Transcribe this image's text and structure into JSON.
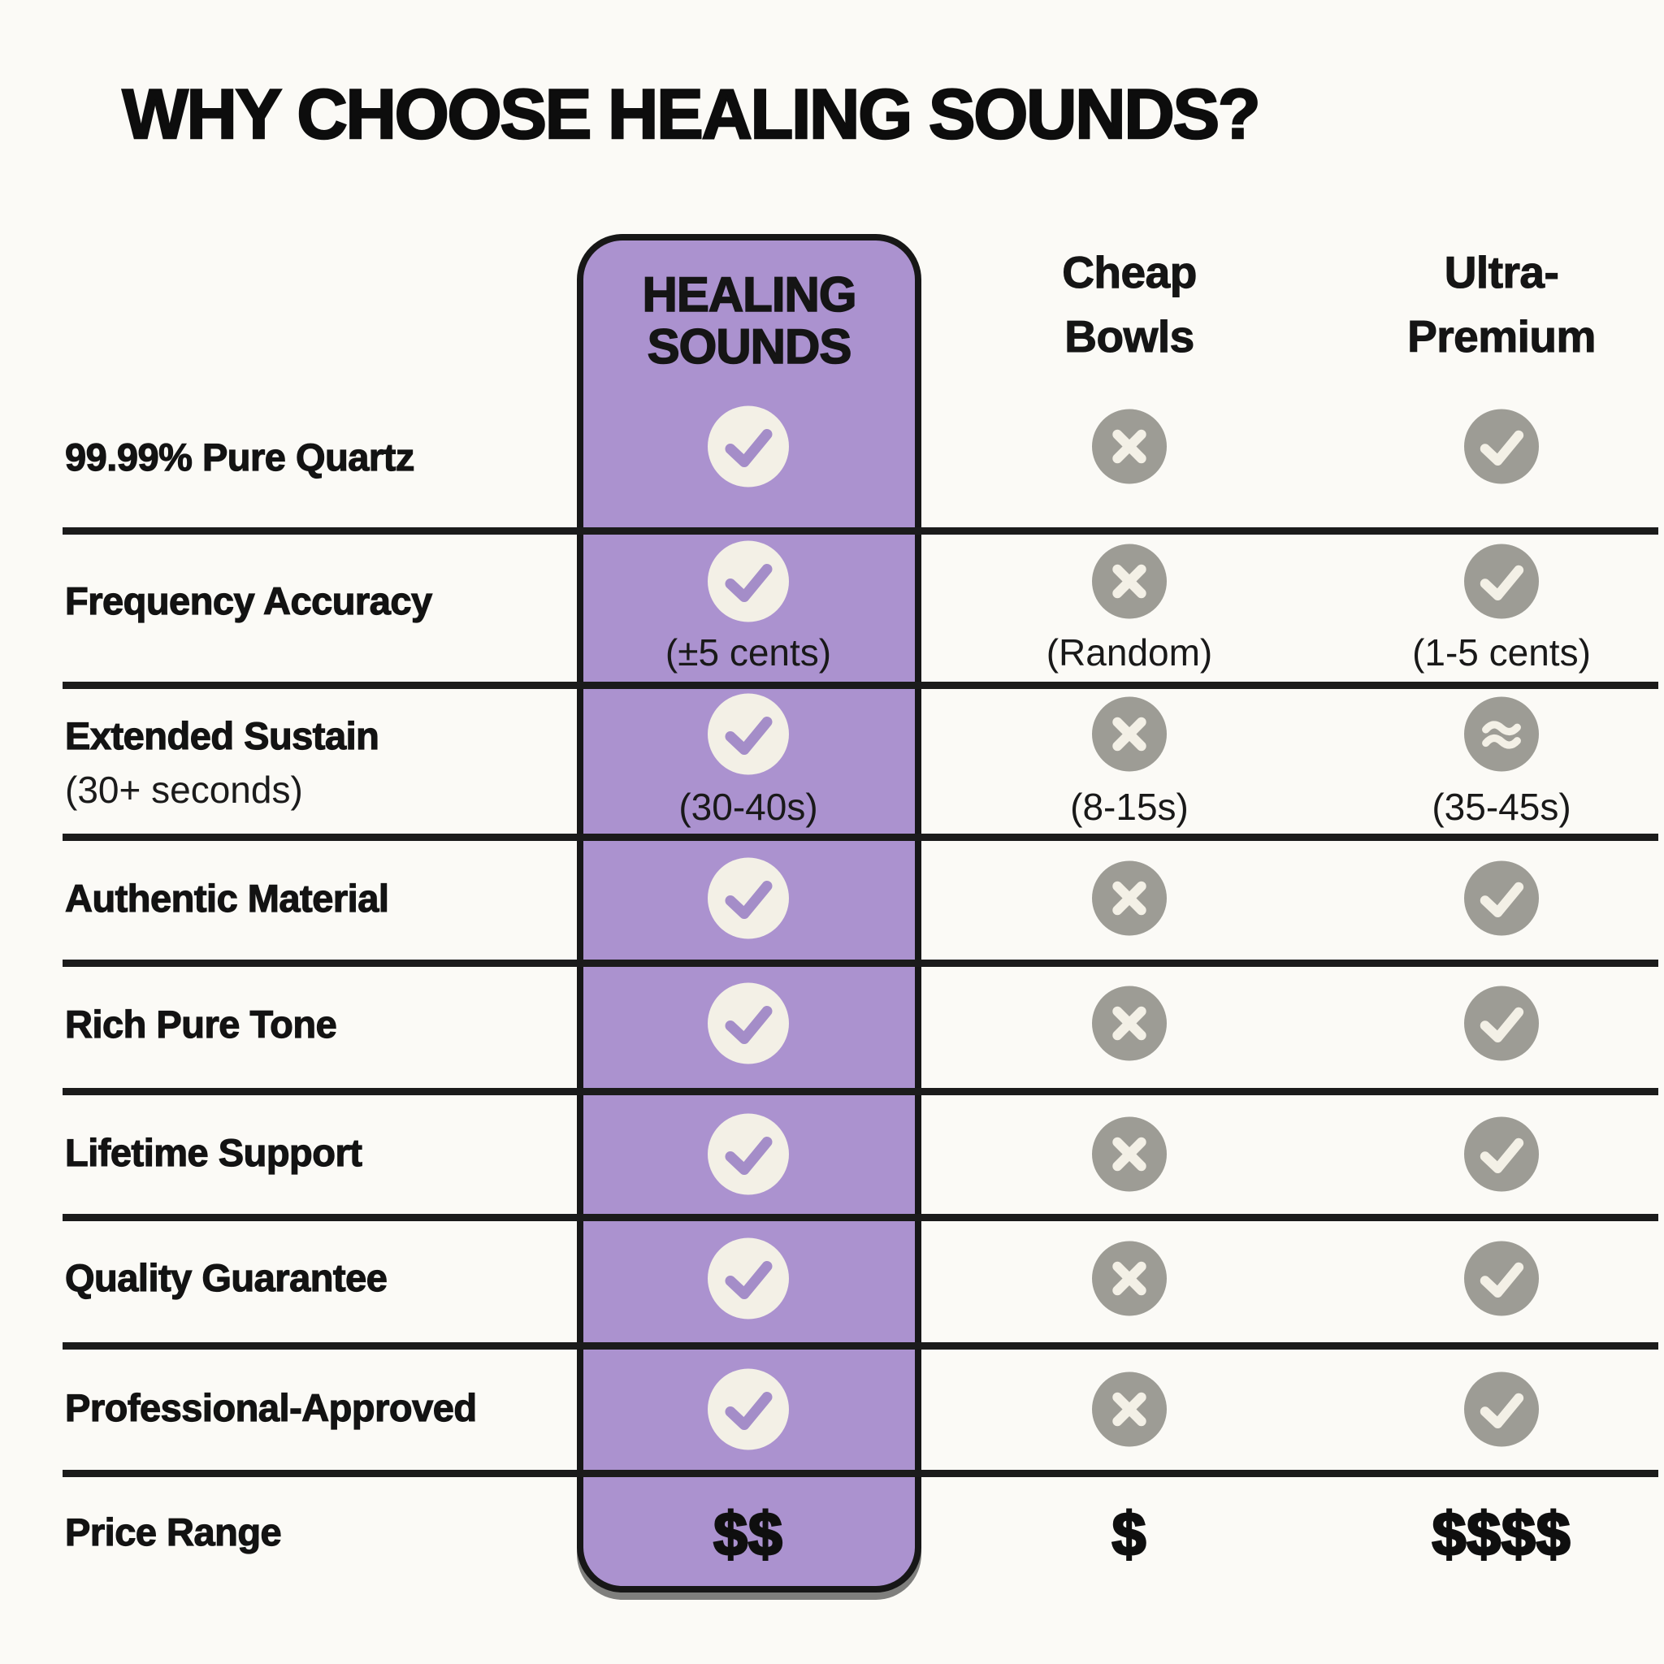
{
  "title": "WHY CHOOSE HEALING SOUNDS?",
  "columns": [
    {
      "id": "healing-sounds",
      "line1": "HEALING",
      "line2": "SOUNDS",
      "highlighted": true
    },
    {
      "id": "cheap-bowls",
      "line1": "Cheap",
      "line2": "Bowls",
      "highlighted": false
    },
    {
      "id": "ultra-premium",
      "line1": "Ultra-",
      "line2": "Premium",
      "highlighted": false
    }
  ],
  "rows": [
    {
      "label": "99.99% Pure Quartz",
      "cells": [
        {
          "icon": "check"
        },
        {
          "icon": "cross"
        },
        {
          "icon": "check"
        }
      ]
    },
    {
      "label": "Frequency Accuracy",
      "cells": [
        {
          "icon": "check",
          "sub": "(±5 cents)"
        },
        {
          "icon": "cross",
          "sub": "(Random)"
        },
        {
          "icon": "check",
          "sub": "(1-5 cents)"
        }
      ]
    },
    {
      "label": "Extended Sustain",
      "sublabel": "(30+ seconds)",
      "cells": [
        {
          "icon": "check",
          "sub": "(30-40s)"
        },
        {
          "icon": "cross",
          "sub": "(8-15s)"
        },
        {
          "icon": "approx",
          "sub": "(35-45s)"
        }
      ]
    },
    {
      "label": "Authentic Material",
      "cells": [
        {
          "icon": "check"
        },
        {
          "icon": "cross"
        },
        {
          "icon": "check"
        }
      ]
    },
    {
      "label": "Rich Pure Tone",
      "cells": [
        {
          "icon": "check"
        },
        {
          "icon": "cross"
        },
        {
          "icon": "check"
        }
      ]
    },
    {
      "label": "Lifetime Support",
      "cells": [
        {
          "icon": "check"
        },
        {
          "icon": "cross"
        },
        {
          "icon": "check"
        }
      ]
    },
    {
      "label": "Quality Guarantee",
      "cells": [
        {
          "icon": "check"
        },
        {
          "icon": "cross"
        },
        {
          "icon": "check"
        }
      ]
    },
    {
      "label": "Professional-Approved",
      "cells": [
        {
          "icon": "check"
        },
        {
          "icon": "cross"
        },
        {
          "icon": "check"
        }
      ]
    },
    {
      "label": "Price Range",
      "cells": [
        {
          "text": "$$"
        },
        {
          "text": "$"
        },
        {
          "text": "$$$$"
        }
      ]
    }
  ],
  "colors": {
    "background": "#fbfaf6",
    "highlight_purple": "#ab92cf",
    "column_border": "#171717",
    "check_circle_cream": "#f3f0e6",
    "check_mark_purple": "#a48dc8",
    "gray_circle": "#9d9c95",
    "gray_glyph_cream": "#f3f0e6",
    "ink": "#141414"
  },
  "chart_data": {
    "type": "table",
    "title": "WHY CHOOSE HEALING SOUNDS?",
    "columns": [
      "HEALING SOUNDS",
      "Cheap Bowls",
      "Ultra-Premium"
    ],
    "row_headers": [
      "99.99% Pure Quartz",
      "Frequency Accuracy",
      "Extended Sustain (30+ seconds)",
      "Authentic Material",
      "Rich Pure Tone",
      "Lifetime Support",
      "Quality Guarantee",
      "Professional-Approved",
      "Price Range"
    ],
    "cells": [
      [
        "yes",
        "no",
        "yes"
      ],
      [
        "yes (±5 cents)",
        "no (Random)",
        "yes (1-5 cents)"
      ],
      [
        "yes (30-40s)",
        "no (8-15s)",
        "approx (35-45s)"
      ],
      [
        "yes",
        "no",
        "yes"
      ],
      [
        "yes",
        "no",
        "yes"
      ],
      [
        "yes",
        "no",
        "yes"
      ],
      [
        "yes",
        "no",
        "yes"
      ],
      [
        "yes",
        "no",
        "yes"
      ],
      [
        "$$",
        "$",
        "$$$$"
      ]
    ],
    "layout_hints": {
      "highlighted_column": "HEALING SOUNDS",
      "highlight_color": "#ab92cf"
    }
  }
}
